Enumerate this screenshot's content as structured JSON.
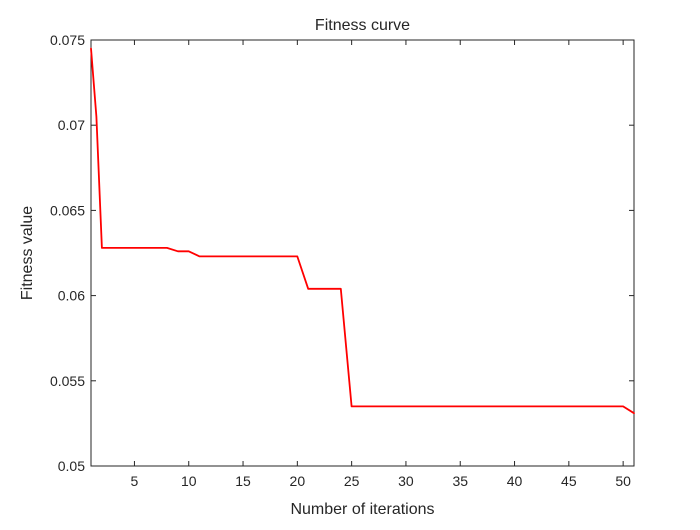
{
  "chart_data": {
    "type": "line",
    "title": "Fitness curve",
    "xlabel": "Number of iterations",
    "ylabel": "Fitness value",
    "xlim": [
      1,
      51
    ],
    "ylim": [
      0.05,
      0.075
    ],
    "xticks": [
      5,
      10,
      15,
      20,
      25,
      30,
      35,
      40,
      45,
      50
    ],
    "yticks": [
      0.05,
      0.055,
      0.06,
      0.065,
      0.07,
      0.075
    ],
    "ytick_labels": [
      "0.05",
      "0.055",
      "0.06",
      "0.065",
      "0.07",
      "0.075"
    ],
    "grid": false,
    "box": true,
    "series": [
      {
        "color": "#ff0000",
        "x": [
          1,
          1.5,
          2,
          3,
          4,
          5,
          6,
          7,
          8,
          9,
          10,
          11,
          12,
          13,
          14,
          15,
          16,
          17,
          18,
          19,
          20,
          21,
          22,
          23,
          24,
          25,
          26,
          27,
          28,
          29,
          30,
          31,
          32,
          33,
          34,
          35,
          36,
          37,
          38,
          39,
          40,
          41,
          42,
          43,
          44,
          45,
          46,
          47,
          48,
          49,
          50,
          51
        ],
        "y": [
          0.0745,
          0.0705,
          0.0628,
          0.0628,
          0.0628,
          0.0628,
          0.0628,
          0.0628,
          0.0628,
          0.0626,
          0.0626,
          0.0623,
          0.0623,
          0.0623,
          0.0623,
          0.0623,
          0.0623,
          0.0623,
          0.0623,
          0.0623,
          0.0623,
          0.0604,
          0.0604,
          0.0604,
          0.0604,
          0.0535,
          0.0535,
          0.0535,
          0.0535,
          0.0535,
          0.0535,
          0.0535,
          0.0535,
          0.0535,
          0.0535,
          0.0535,
          0.0535,
          0.0535,
          0.0535,
          0.0535,
          0.0535,
          0.0535,
          0.0535,
          0.0535,
          0.0535,
          0.0535,
          0.0535,
          0.0535,
          0.0535,
          0.0535,
          0.0535,
          0.0531
        ]
      }
    ]
  }
}
